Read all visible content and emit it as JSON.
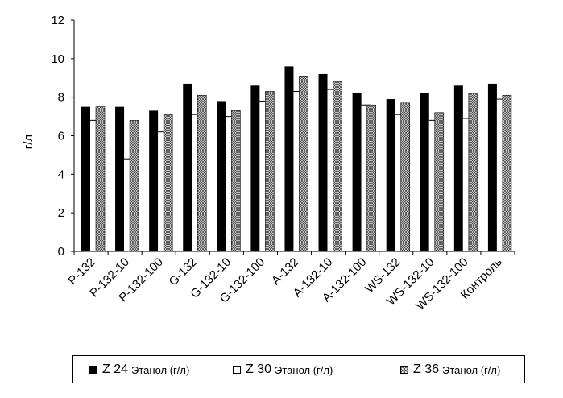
{
  "chart_data": {
    "type": "bar",
    "title": "",
    "xlabel": "",
    "ylabel": "г/л",
    "ylim": [
      0,
      12
    ],
    "yticks": [
      "0",
      "2",
      "4",
      "6",
      "8",
      "10",
      "12"
    ],
    "categories": [
      "P-132",
      "P-132-10",
      "P-132-100",
      "G-132",
      "G-132-10",
      "G-132-100",
      "A-132",
      "A-132-10",
      "A-132-100",
      "WS-132",
      "WS-132-10",
      "WS-132-100",
      "Контроль"
    ],
    "series": [
      {
        "name": "Z 24",
        "name_suffix": "Этанол (г/л)",
        "fill": "#000000",
        "values": [
          7.5,
          7.5,
          7.3,
          8.7,
          7.8,
          8.6,
          9.6,
          9.2,
          8.2,
          7.9,
          8.2,
          8.6,
          8.7
        ]
      },
      {
        "name": "Z 30",
        "name_suffix": "Этанол (г/л)",
        "fill": "#ffffff",
        "values": [
          6.8,
          4.8,
          6.2,
          7.1,
          7.0,
          7.8,
          8.3,
          8.4,
          7.6,
          7.1,
          6.8,
          6.9,
          7.9
        ]
      },
      {
        "name": "Z 36",
        "name_suffix": "Этанол (г/л)",
        "fill": "hatch",
        "values": [
          7.5,
          6.8,
          7.1,
          8.1,
          7.3,
          8.3,
          9.1,
          8.8,
          7.6,
          7.7,
          7.2,
          8.2,
          8.1
        ]
      }
    ],
    "legend_position": "bottom"
  }
}
